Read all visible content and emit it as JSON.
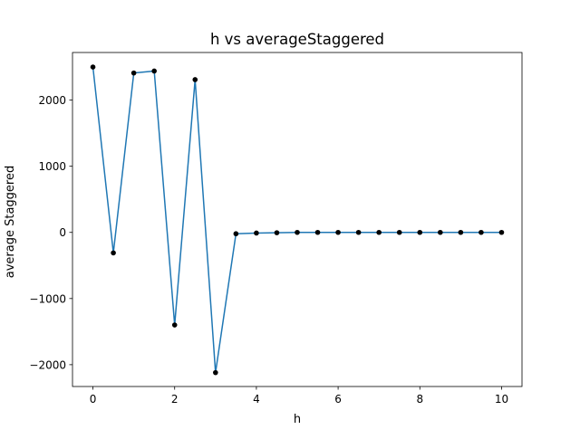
{
  "chart_data": {
    "type": "line",
    "title": "h vs averageStaggered",
    "xlabel": "h",
    "ylabel": "average Staggered",
    "xlim": [
      -0.5,
      10.5
    ],
    "ylim": [
      -2330,
      2720
    ],
    "x_ticks": [
      0,
      2,
      4,
      6,
      8,
      10
    ],
    "x_tick_labels": [
      "0",
      "2",
      "4",
      "6",
      "8",
      "10"
    ],
    "y_ticks": [
      -2000,
      -1000,
      0,
      1000,
      2000
    ],
    "y_tick_labels": [
      "−2000",
      "−1000",
      "0",
      "1000",
      "2000"
    ],
    "grid": false,
    "legend": "none",
    "series": [
      {
        "line_color": "#1f77b4",
        "marker_color": "#000000",
        "marker": "circle",
        "x": [
          0,
          0.5,
          1,
          1.5,
          2,
          2.5,
          3,
          3.5,
          4,
          4.5,
          5,
          5.5,
          6,
          6.5,
          7,
          7.5,
          8,
          8.5,
          9,
          9.5,
          10
        ],
        "y": [
          2500,
          -310,
          2410,
          2440,
          -1400,
          2310,
          -2120,
          -20,
          -10,
          -5,
          0,
          0,
          0,
          0,
          0,
          0,
          0,
          0,
          0,
          0,
          0
        ]
      }
    ]
  }
}
